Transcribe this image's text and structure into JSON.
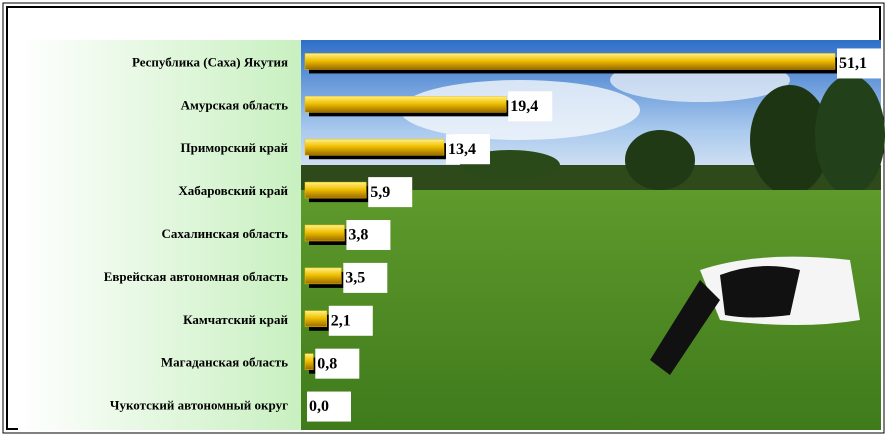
{
  "chart_data": {
    "type": "bar",
    "categories": [
      "Республика (Саха) Якутия",
      "Амурская область",
      "Приморский край",
      "Хабаровский край",
      "Сахалинская область",
      "Еврейская автономная область",
      "Камчатский край",
      "Магаданская область",
      "Чукотский автономный округ"
    ],
    "values": [
      51.1,
      19.4,
      13.4,
      5.9,
      3.8,
      3.5,
      2.1,
      0.8,
      0.0
    ],
    "value_labels": [
      "51,1",
      "19,4",
      "13,4",
      "5,9",
      "3,8",
      "3,5",
      "2,1",
      "0,8",
      "0,0"
    ],
    "color": "#f0c000"
  }
}
